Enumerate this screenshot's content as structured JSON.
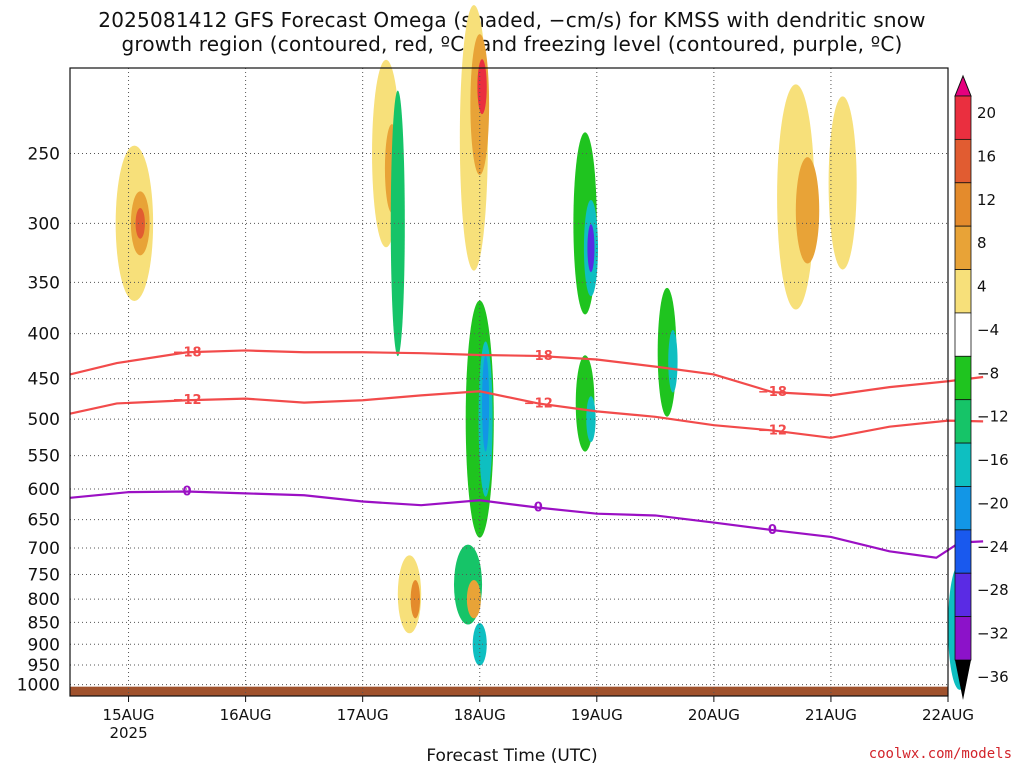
{
  "chart_data": {
    "type": "heatmap",
    "title_line1": "2025081412 GFS Forecast Omega (shaded, −cm/s) for KMSS with dendritic snow",
    "title_line2": "growth region (contoured, red, ºC) and freezing level (contoured, purple, ºC)",
    "xlabel": "Forecast Time (UTC)",
    "ylabel": "",
    "y_axis_pressure_levels": [
      250,
      300,
      350,
      400,
      450,
      500,
      550,
      600,
      650,
      700,
      750,
      800,
      850,
      900,
      950,
      1000
    ],
    "y_range_hpa": [
      1000,
      200
    ],
    "y_scale": "log-pressure",
    "x_ticks": [
      "15AUG",
      "16AUG",
      "17AUG",
      "18AUG",
      "19AUG",
      "20AUG",
      "21AUG",
      "22AUG"
    ],
    "x_tick_subtext": "2025",
    "x_range_days": [
      "2025-08-14T12Z",
      "2025-08-22T00Z"
    ],
    "grid": true,
    "colorbar_labels": [
      "20",
      "16",
      "12",
      "8",
      "4",
      "−4",
      "−8",
      "−12",
      "−16",
      "−20",
      "−24",
      "−28",
      "−32",
      "−36"
    ],
    "colorbar_colors": [
      "#f7e07a",
      "#e9c837",
      "#e8a337",
      "#e48b2c",
      "#e15c31",
      "#ea2f3f",
      "#e6007e",
      "#ffffff",
      "#1fc41f",
      "#16c468",
      "#0ebfc1",
      "#1296e6",
      "#1959ee",
      "#5a2be4",
      "#8c12c9",
      "#9b9b9b"
    ],
    "contours": [
      {
        "label": "−18",
        "color": "#f24b4b",
        "points_hpa": [
          [
            0.0,
            445
          ],
          [
            0.4,
            432
          ],
          [
            1.0,
            420
          ],
          [
            1.5,
            418
          ],
          [
            2.0,
            420
          ],
          [
            2.5,
            420
          ],
          [
            3.0,
            421
          ],
          [
            3.5,
            423
          ],
          [
            4.0,
            424
          ],
          [
            4.5,
            428
          ],
          [
            5.0,
            436
          ],
          [
            5.5,
            445
          ],
          [
            6.0,
            466
          ],
          [
            6.5,
            470
          ],
          [
            7.0,
            460
          ],
          [
            7.5,
            453
          ],
          [
            7.8,
            448
          ]
        ]
      },
      {
        "label": "−12",
        "color": "#f24b4b",
        "points_hpa": [
          [
            0.0,
            493
          ],
          [
            0.4,
            480
          ],
          [
            1.0,
            476
          ],
          [
            1.5,
            474
          ],
          [
            2.0,
            479
          ],
          [
            2.5,
            476
          ],
          [
            3.0,
            470
          ],
          [
            3.5,
            465
          ],
          [
            4.0,
            480
          ],
          [
            4.5,
            490
          ],
          [
            5.0,
            497
          ],
          [
            5.5,
            508
          ],
          [
            6.0,
            515
          ],
          [
            6.5,
            525
          ],
          [
            7.0,
            510
          ],
          [
            7.5,
            502
          ],
          [
            7.8,
            503
          ]
        ]
      },
      {
        "label": "0",
        "color": "#9b10c4",
        "points_hpa": [
          [
            0.0,
            614
          ],
          [
            0.5,
            605
          ],
          [
            1.0,
            604
          ],
          [
            1.5,
            607
          ],
          [
            2.0,
            610
          ],
          [
            2.5,
            620
          ],
          [
            3.0,
            626
          ],
          [
            3.5,
            618
          ],
          [
            4.0,
            630
          ],
          [
            4.5,
            640
          ],
          [
            5.0,
            643
          ],
          [
            5.5,
            655
          ],
          [
            6.0,
            668
          ],
          [
            6.5,
            680
          ],
          [
            7.0,
            706
          ],
          [
            7.4,
            718
          ],
          [
            7.6,
            690
          ],
          [
            7.8,
            688
          ]
        ]
      }
    ],
    "omega_region_notes": "Strongest rising motion (blue/purple) near 17AUG–18AUG and 19AUG at low levels; surface ground shaded brown below 1000 hPa."
  },
  "watermark": "coolwx.com/models"
}
